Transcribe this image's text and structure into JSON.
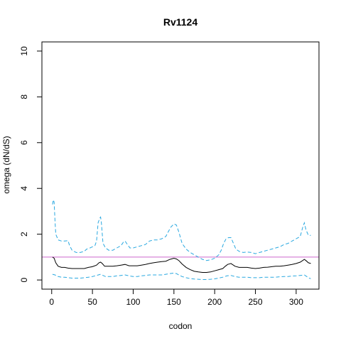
{
  "chart_data": {
    "type": "line",
    "title": "Rv1124",
    "xlabel": "codon",
    "ylabel": "omega (dN/dS)",
    "xlim": [
      -12,
      328
    ],
    "ylim": [
      -0.4,
      10.4
    ],
    "xticks": [
      0,
      50,
      100,
      150,
      200,
      250,
      300
    ],
    "yticks": [
      0,
      2,
      4,
      6,
      8,
      10
    ],
    "grid": false,
    "legend": "none",
    "reference_line": {
      "y": 1,
      "color": "#cc66cc"
    },
    "series": [
      {
        "style": "solid",
        "color": "#000000",
        "points": [
          [
            1,
            1.0
          ],
          [
            3,
            0.95
          ],
          [
            5,
            0.75
          ],
          [
            8,
            0.6
          ],
          [
            12,
            0.55
          ],
          [
            16,
            0.55
          ],
          [
            20,
            0.52
          ],
          [
            25,
            0.5
          ],
          [
            30,
            0.5
          ],
          [
            35,
            0.5
          ],
          [
            40,
            0.5
          ],
          [
            45,
            0.55
          ],
          [
            50,
            0.58
          ],
          [
            55,
            0.65
          ],
          [
            58,
            0.75
          ],
          [
            60,
            0.78
          ],
          [
            62,
            0.72
          ],
          [
            65,
            0.6
          ],
          [
            70,
            0.6
          ],
          [
            75,
            0.6
          ],
          [
            80,
            0.62
          ],
          [
            85,
            0.65
          ],
          [
            90,
            0.68
          ],
          [
            95,
            0.62
          ],
          [
            100,
            0.62
          ],
          [
            105,
            0.62
          ],
          [
            110,
            0.65
          ],
          [
            115,
            0.68
          ],
          [
            120,
            0.72
          ],
          [
            125,
            0.75
          ],
          [
            130,
            0.78
          ],
          [
            135,
            0.8
          ],
          [
            140,
            0.82
          ],
          [
            145,
            0.9
          ],
          [
            150,
            0.95
          ],
          [
            153,
            0.92
          ],
          [
            156,
            0.85
          ],
          [
            160,
            0.7
          ],
          [
            165,
            0.55
          ],
          [
            170,
            0.45
          ],
          [
            175,
            0.38
          ],
          [
            180,
            0.35
          ],
          [
            185,
            0.33
          ],
          [
            190,
            0.33
          ],
          [
            195,
            0.35
          ],
          [
            200,
            0.4
          ],
          [
            205,
            0.45
          ],
          [
            210,
            0.5
          ],
          [
            213,
            0.6
          ],
          [
            216,
            0.68
          ],
          [
            220,
            0.72
          ],
          [
            225,
            0.6
          ],
          [
            230,
            0.55
          ],
          [
            235,
            0.55
          ],
          [
            240,
            0.55
          ],
          [
            245,
            0.52
          ],
          [
            250,
            0.5
          ],
          [
            255,
            0.52
          ],
          [
            260,
            0.55
          ],
          [
            265,
            0.56
          ],
          [
            270,
            0.58
          ],
          [
            275,
            0.6
          ],
          [
            280,
            0.6
          ],
          [
            285,
            0.62
          ],
          [
            290,
            0.65
          ],
          [
            295,
            0.68
          ],
          [
            300,
            0.72
          ],
          [
            305,
            0.78
          ],
          [
            308,
            0.85
          ],
          [
            310,
            0.9
          ],
          [
            312,
            0.85
          ],
          [
            315,
            0.75
          ],
          [
            318,
            0.72
          ]
        ]
      },
      {
        "style": "dashed",
        "color": "#29a8e0",
        "points": [
          [
            1,
            3.3
          ],
          [
            2,
            3.5
          ],
          [
            3,
            3.4
          ],
          [
            4,
            2.6
          ],
          [
            5,
            2.0
          ],
          [
            8,
            1.75
          ],
          [
            12,
            1.7
          ],
          [
            16,
            1.7
          ],
          [
            20,
            1.72
          ],
          [
            22,
            1.5
          ],
          [
            25,
            1.3
          ],
          [
            30,
            1.2
          ],
          [
            35,
            1.2
          ],
          [
            40,
            1.25
          ],
          [
            43,
            1.35
          ],
          [
            47,
            1.4
          ],
          [
            50,
            1.45
          ],
          [
            53,
            1.5
          ],
          [
            55,
            1.7
          ],
          [
            57,
            2.5
          ],
          [
            59,
            2.7
          ],
          [
            60,
            2.75
          ],
          [
            61,
            2.5
          ],
          [
            63,
            1.6
          ],
          [
            66,
            1.4
          ],
          [
            70,
            1.3
          ],
          [
            75,
            1.3
          ],
          [
            80,
            1.4
          ],
          [
            85,
            1.5
          ],
          [
            88,
            1.65
          ],
          [
            90,
            1.7
          ],
          [
            93,
            1.55
          ],
          [
            96,
            1.4
          ],
          [
            100,
            1.4
          ],
          [
            105,
            1.45
          ],
          [
            110,
            1.5
          ],
          [
            115,
            1.55
          ],
          [
            120,
            1.7
          ],
          [
            125,
            1.75
          ],
          [
            130,
            1.75
          ],
          [
            135,
            1.8
          ],
          [
            140,
            1.9
          ],
          [
            143,
            2.1
          ],
          [
            146,
            2.3
          ],
          [
            150,
            2.45
          ],
          [
            153,
            2.4
          ],
          [
            156,
            2.1
          ],
          [
            160,
            1.6
          ],
          [
            165,
            1.35
          ],
          [
            170,
            1.2
          ],
          [
            175,
            1.1
          ],
          [
            180,
            1.0
          ],
          [
            185,
            0.9
          ],
          [
            190,
            0.85
          ],
          [
            195,
            0.88
          ],
          [
            200,
            0.95
          ],
          [
            205,
            1.1
          ],
          [
            208,
            1.3
          ],
          [
            211,
            1.6
          ],
          [
            214,
            1.8
          ],
          [
            217,
            1.85
          ],
          [
            220,
            1.85
          ],
          [
            223,
            1.6
          ],
          [
            226,
            1.35
          ],
          [
            230,
            1.25
          ],
          [
            235,
            1.2
          ],
          [
            240,
            1.22
          ],
          [
            245,
            1.2
          ],
          [
            250,
            1.15
          ],
          [
            255,
            1.2
          ],
          [
            260,
            1.25
          ],
          [
            265,
            1.3
          ],
          [
            270,
            1.35
          ],
          [
            275,
            1.4
          ],
          [
            280,
            1.45
          ],
          [
            285,
            1.55
          ],
          [
            290,
            1.6
          ],
          [
            295,
            1.7
          ],
          [
            300,
            1.8
          ],
          [
            305,
            1.9
          ],
          [
            308,
            2.3
          ],
          [
            310,
            2.5
          ],
          [
            312,
            2.2
          ],
          [
            315,
            1.95
          ],
          [
            318,
            1.95
          ]
        ]
      },
      {
        "style": "dashed",
        "color": "#29a8e0",
        "points": [
          [
            1,
            0.25
          ],
          [
            4,
            0.22
          ],
          [
            8,
            0.15
          ],
          [
            12,
            0.12
          ],
          [
            16,
            0.12
          ],
          [
            20,
            0.1
          ],
          [
            25,
            0.08
          ],
          [
            30,
            0.08
          ],
          [
            35,
            0.08
          ],
          [
            40,
            0.1
          ],
          [
            45,
            0.12
          ],
          [
            50,
            0.15
          ],
          [
            55,
            0.2
          ],
          [
            60,
            0.25
          ],
          [
            63,
            0.2
          ],
          [
            66,
            0.15
          ],
          [
            70,
            0.15
          ],
          [
            75,
            0.15
          ],
          [
            80,
            0.18
          ],
          [
            85,
            0.2
          ],
          [
            90,
            0.22
          ],
          [
            95,
            0.18
          ],
          [
            100,
            0.15
          ],
          [
            105,
            0.15
          ],
          [
            110,
            0.18
          ],
          [
            115,
            0.2
          ],
          [
            120,
            0.22
          ],
          [
            125,
            0.22
          ],
          [
            130,
            0.22
          ],
          [
            135,
            0.22
          ],
          [
            140,
            0.25
          ],
          [
            145,
            0.28
          ],
          [
            150,
            0.3
          ],
          [
            153,
            0.28
          ],
          [
            156,
            0.22
          ],
          [
            160,
            0.15
          ],
          [
            165,
            0.1
          ],
          [
            170,
            0.06
          ],
          [
            175,
            0.04
          ],
          [
            180,
            0.03
          ],
          [
            185,
            0.02
          ],
          [
            190,
            0.02
          ],
          [
            195,
            0.03
          ],
          [
            200,
            0.05
          ],
          [
            205,
            0.08
          ],
          [
            210,
            0.12
          ],
          [
            215,
            0.18
          ],
          [
            220,
            0.2
          ],
          [
            225,
            0.15
          ],
          [
            230,
            0.12
          ],
          [
            235,
            0.12
          ],
          [
            240,
            0.12
          ],
          [
            245,
            0.1
          ],
          [
            250,
            0.1
          ],
          [
            255,
            0.1
          ],
          [
            260,
            0.12
          ],
          [
            265,
            0.12
          ],
          [
            270,
            0.12
          ],
          [
            275,
            0.12
          ],
          [
            280,
            0.14
          ],
          [
            285,
            0.15
          ],
          [
            290,
            0.15
          ],
          [
            295,
            0.17
          ],
          [
            300,
            0.18
          ],
          [
            305,
            0.2
          ],
          [
            310,
            0.22
          ],
          [
            313,
            0.15
          ],
          [
            316,
            0.08
          ],
          [
            318,
            0.06
          ]
        ]
      }
    ]
  }
}
